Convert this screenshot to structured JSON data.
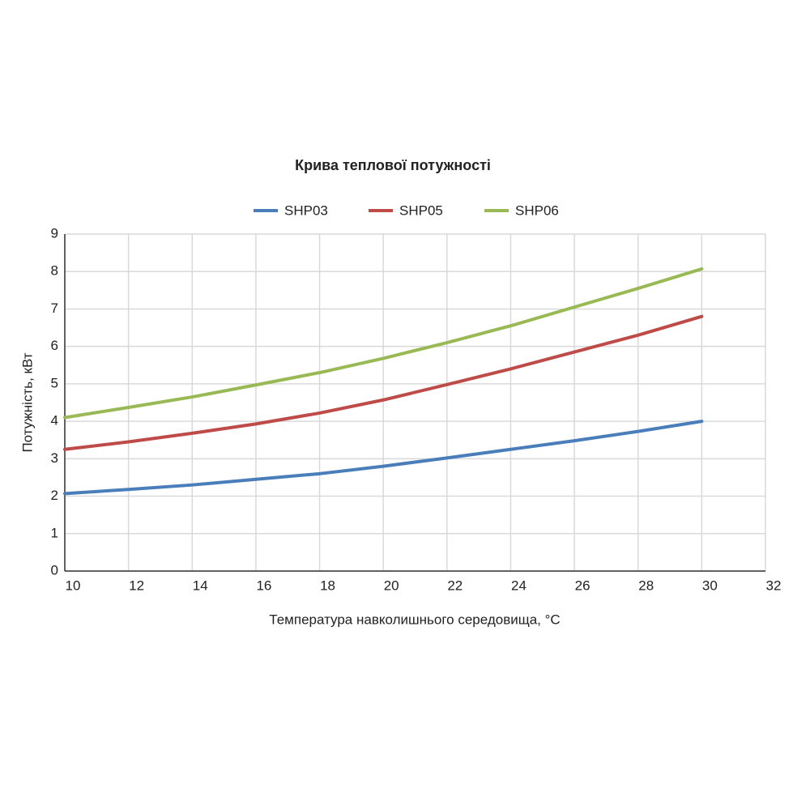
{
  "chart_data": {
    "type": "line",
    "title": "Крива теплової потужності",
    "x_label": "Температура навколишнього середовища, °C",
    "y_label": "Потужність, кВт",
    "x": [
      10,
      12,
      14,
      16,
      18,
      20,
      22,
      24,
      26,
      28,
      30
    ],
    "series": [
      {
        "name": "SHP03",
        "color": "#4a7ebb",
        "values": [
          2.07,
          2.18,
          2.3,
          2.45,
          2.6,
          2.8,
          3.02,
          3.25,
          3.48,
          3.73,
          4.0
        ]
      },
      {
        "name": "SHP05",
        "color": "#be4b48",
        "values": [
          3.25,
          3.45,
          3.68,
          3.93,
          4.22,
          4.57,
          4.98,
          5.4,
          5.85,
          6.3,
          6.8
        ]
      },
      {
        "name": "SHP06",
        "color": "#98b954",
        "values": [
          4.1,
          4.37,
          4.65,
          4.97,
          5.3,
          5.68,
          6.1,
          6.55,
          7.05,
          7.55,
          8.07
        ]
      }
    ],
    "xlim": [
      10,
      32
    ],
    "xticks": [
      10,
      12,
      14,
      16,
      18,
      20,
      22,
      24,
      26,
      28,
      30,
      32
    ],
    "ylim": [
      0,
      9
    ],
    "yticks": [
      0,
      1,
      2,
      3,
      4,
      5,
      6,
      7,
      8,
      9
    ],
    "grid": true,
    "legend": "top"
  }
}
